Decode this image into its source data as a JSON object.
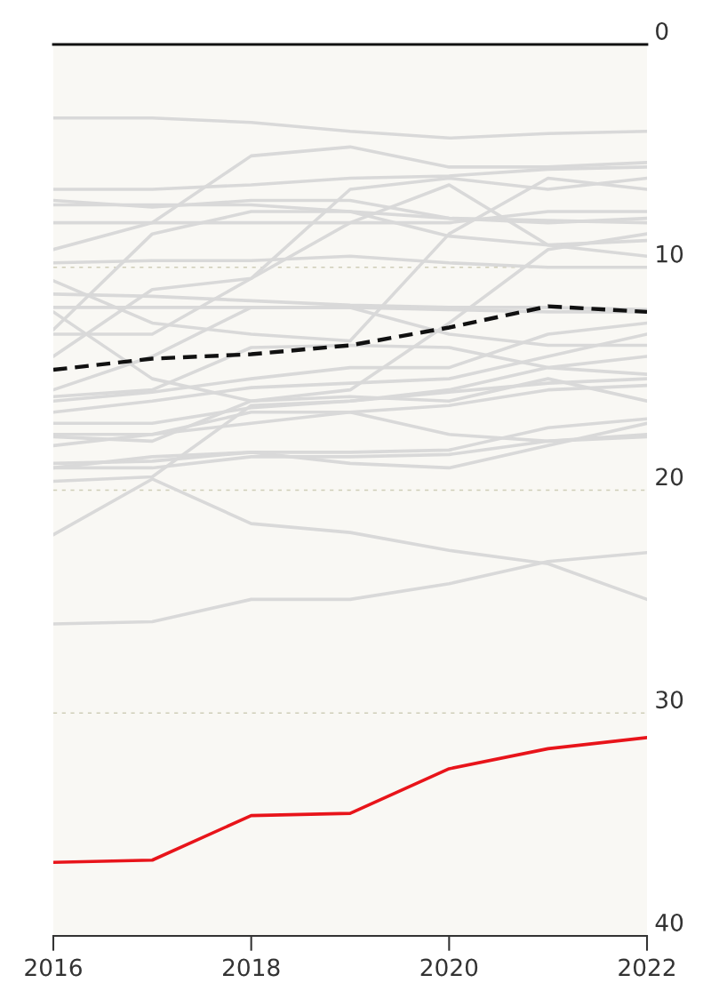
{
  "chart_data": {
    "type": "line",
    "x": [
      2016,
      2017,
      2018,
      2019,
      2020,
      2021,
      2022
    ],
    "xlim": [
      2016,
      2022
    ],
    "xticks": [
      2016,
      2018,
      2020,
      2022
    ],
    "ylim": [
      40,
      0
    ],
    "yticks": [
      0,
      10,
      20,
      30,
      40
    ],
    "grid": "y",
    "marker": "none",
    "series": [
      {
        "color": "#d9d9d9",
        "values": [
          3.3,
          3.3,
          3.5,
          3.9,
          4.2,
          4.0,
          3.9
        ]
      },
      {
        "color": "#d9d9d9",
        "values": [
          6.5,
          6.5,
          6.3,
          6.0,
          5.9,
          5.6,
          5.5
        ]
      },
      {
        "color": "#d9d9d9",
        "values": [
          9.2,
          8.0,
          5.0,
          4.6,
          5.5,
          5.5,
          5.3
        ]
      },
      {
        "color": "#d9d9d9",
        "values": [
          7.0,
          7.3,
          7.0,
          7.0,
          7.8,
          8.0,
          7.8
        ]
      },
      {
        "color": "#d9d9d9",
        "values": [
          7.2,
          7.2,
          7.2,
          7.5,
          7.8,
          7.9,
          8.0
        ]
      },
      {
        "color": "#d9d9d9",
        "values": [
          9.8,
          9.7,
          9.7,
          9.5,
          9.8,
          10.0,
          10.0
        ]
      },
      {
        "color": "#d9d9d9",
        "values": [
          11.2,
          11.3,
          11.5,
          11.7,
          11.8,
          11.8,
          11.9
        ]
      },
      {
        "color": "#d9d9d9",
        "values": [
          11.8,
          11.8,
          11.8,
          11.8,
          11.9,
          12.0,
          12.0
        ]
      },
      {
        "color": "#d9d9d9",
        "values": [
          12.8,
          8.5,
          7.5,
          7.5,
          8.6,
          9.0,
          8.8
        ]
      },
      {
        "color": "#d9d9d9",
        "values": [
          13.0,
          13.0,
          10.5,
          6.5,
          6.0,
          6.5,
          6.0
        ]
      },
      {
        "color": "#d9d9d9",
        "values": [
          10.6,
          12.5,
          13.0,
          13.3,
          8.5,
          6.0,
          6.5
        ]
      },
      {
        "color": "#d9d9d9",
        "values": [
          14.0,
          11.0,
          10.5,
          8.0,
          6.3,
          9.0,
          9.5
        ]
      },
      {
        "color": "#d9d9d9",
        "values": [
          15.5,
          14.0,
          11.8,
          11.8,
          13.0,
          13.5,
          13.5
        ]
      },
      {
        "color": "#d9d9d9",
        "values": [
          12.0,
          15.0,
          16.0,
          15.5,
          12.5,
          9.2,
          8.5
        ]
      },
      {
        "color": "#d9d9d9",
        "values": [
          16.0,
          15.6,
          15.0,
          14.5,
          14.5,
          13.0,
          12.5
        ]
      },
      {
        "color": "#d9d9d9",
        "values": [
          16.5,
          16.0,
          15.4,
          15.2,
          15.0,
          14.0,
          13.0
        ]
      },
      {
        "color": "#d9d9d9",
        "values": [
          17.0,
          17.0,
          16.3,
          16.0,
          15.6,
          15.2,
          15.0
        ]
      },
      {
        "color": "#d9d9d9",
        "values": [
          17.5,
          17.5,
          17.0,
          16.5,
          16.2,
          15.5,
          15.3
        ]
      },
      {
        "color": "#d9d9d9",
        "values": [
          17.6,
          17.8,
          16.0,
          15.8,
          16.0,
          15.0,
          16.0
        ]
      },
      {
        "color": "#d9d9d9",
        "values": [
          18.0,
          17.5,
          16.5,
          16.5,
          17.5,
          17.8,
          17.5
        ]
      },
      {
        "color": "#d9d9d9",
        "values": [
          18.8,
          18.7,
          18.3,
          18.3,
          18.2,
          17.2,
          16.8
        ]
      },
      {
        "color": "#d9d9d9",
        "values": [
          19.0,
          18.5,
          18.3,
          18.8,
          19.0,
          18.0,
          17.0
        ]
      },
      {
        "color": "#d9d9d9",
        "values": [
          19.0,
          19.0,
          18.5,
          18.5,
          18.4,
          17.8,
          17.6
        ]
      },
      {
        "color": "#d9d9d9",
        "values": [
          19.6,
          19.4,
          16.2,
          16.0,
          15.5,
          14.5,
          14.0
        ]
      },
      {
        "color": "#d9d9d9",
        "values": [
          22.0,
          19.5,
          21.5,
          21.9,
          22.7,
          23.3,
          24.9
        ]
      },
      {
        "color": "#d9d9d9",
        "values": [
          26.0,
          25.9,
          24.9,
          24.9,
          24.2,
          23.2,
          22.8
        ]
      },
      {
        "color": "#d9d9d9",
        "values": [
          8.0,
          8.0,
          8.0,
          8.0,
          8.0,
          7.5,
          7.5
        ]
      },
      {
        "color": "#d9d9d9",
        "values": [
          15.8,
          15.5,
          13.6,
          13.5,
          13.6,
          14.5,
          14.8
        ]
      },
      {
        "color": "#111111",
        "line_style": "dashed",
        "values": [
          14.6,
          14.1,
          13.9,
          13.5,
          12.7,
          11.75,
          12.0
        ]
      },
      {
        "color": "#e8141a",
        "values": [
          36.7,
          36.6,
          34.6,
          34.5,
          32.5,
          31.6,
          31.1
        ]
      }
    ]
  }
}
